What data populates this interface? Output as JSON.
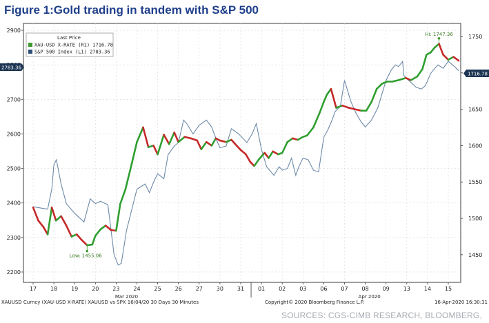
{
  "figure_title": "Figure 1:Gold trading in tandem with S&P 500",
  "source_note": "SOURCES: CGS-CIMB RESEARCH, BLOOMBERG,",
  "colors": {
    "title": "#1f3f8a",
    "gold_up": "#2f9e2f",
    "gold_down": "#c62828",
    "sp500": "#6d89a8",
    "tag_bg": "#1c3552"
  },
  "chart_data": {
    "type": "line",
    "legend": {
      "header": "Last Price",
      "entries": [
        {
          "color": "#3d9b2e",
          "text": "XAU-USD X-RATE (R1) 1716.78"
        },
        {
          "color": "#2e4f77",
          "text": "S&P 500 Index (L1) 2783.36"
        }
      ],
      "position": "top-left"
    },
    "left_axis": {
      "ticks": [
        2200,
        2300,
        2400,
        2500,
        2600,
        2700,
        2800,
        2900
      ],
      "range": [
        2170,
        2920
      ]
    },
    "right_axis": {
      "ticks": [
        1450,
        1500,
        1550,
        1600,
        1650,
        1700,
        1750
      ],
      "range": [
        1412,
        1768
      ]
    },
    "last_value_tags": {
      "left": "2783.36",
      "right": "1716.78"
    },
    "x_tick_labels": [
      "17",
      "18",
      "19",
      "20",
      "23",
      "24",
      "25",
      "26",
      "27",
      "30",
      "31",
      "01",
      "02",
      "03",
      "06",
      "07",
      "08",
      "09",
      "13",
      "14",
      "15"
    ],
    "month_labels": [
      {
        "text": "Mar 2020",
        "day_index": 4.5
      },
      {
        "text": "Apr 2020",
        "day_index": 16.2
      }
    ],
    "annotations": {
      "low_text": "Low: 1455.06",
      "high_text": "Hi: 1747.36"
    },
    "series": [
      {
        "name": "S&P 500 Index (L1)",
        "axis": "left",
        "points": [
          [
            0,
            2389
          ],
          [
            0.7,
            2382
          ],
          [
            0.9,
            2440
          ],
          [
            1.0,
            2510
          ],
          [
            1.12,
            2525
          ],
          [
            1.35,
            2455
          ],
          [
            1.6,
            2398
          ],
          [
            2.0,
            2370
          ],
          [
            2.45,
            2345
          ],
          [
            2.75,
            2412
          ],
          [
            3.0,
            2398
          ],
          [
            3.25,
            2405
          ],
          [
            3.6,
            2395
          ],
          [
            3.9,
            2250
          ],
          [
            4.1,
            2220
          ],
          [
            4.25,
            2225
          ],
          [
            4.5,
            2320
          ],
          [
            5.0,
            2440
          ],
          [
            5.4,
            2455
          ],
          [
            5.6,
            2430
          ],
          [
            5.8,
            2460
          ],
          [
            6.0,
            2485
          ],
          [
            6.3,
            2470
          ],
          [
            6.5,
            2540
          ],
          [
            6.8,
            2565
          ],
          [
            7.0,
            2575
          ],
          [
            7.25,
            2640
          ],
          [
            7.4,
            2630
          ],
          [
            7.7,
            2600
          ],
          [
            8.0,
            2625
          ],
          [
            8.35,
            2640
          ],
          [
            8.6,
            2620
          ],
          [
            8.85,
            2580
          ],
          [
            9.0,
            2560
          ],
          [
            9.3,
            2565
          ],
          [
            9.55,
            2615
          ],
          [
            9.9,
            2600
          ],
          [
            10.3,
            2575
          ],
          [
            10.55,
            2600
          ],
          [
            10.75,
            2630
          ],
          [
            10.85,
            2600
          ],
          [
            11.0,
            2555
          ],
          [
            11.25,
            2505
          ],
          [
            11.6,
            2480
          ],
          [
            11.85,
            2505
          ],
          [
            12.0,
            2495
          ],
          [
            12.25,
            2500
          ],
          [
            12.45,
            2530
          ],
          [
            12.65,
            2480
          ],
          [
            12.8,
            2505
          ],
          [
            13.0,
            2530
          ],
          [
            13.25,
            2525
          ],
          [
            13.5,
            2495
          ],
          [
            13.75,
            2490
          ],
          [
            14.0,
            2590
          ],
          [
            14.2,
            2612
          ],
          [
            14.4,
            2640
          ],
          [
            14.55,
            2665
          ],
          [
            14.8,
            2680
          ],
          [
            15.0,
            2755
          ],
          [
            15.3,
            2695
          ],
          [
            15.55,
            2660
          ],
          [
            15.8,
            2635
          ],
          [
            16.0,
            2620
          ],
          [
            16.3,
            2640
          ],
          [
            16.6,
            2675
          ],
          [
            16.85,
            2725
          ],
          [
            17.0,
            2755
          ],
          [
            17.25,
            2785
          ],
          [
            17.45,
            2800
          ],
          [
            17.6,
            2795
          ],
          [
            17.8,
            2810
          ],
          [
            17.85,
            2770
          ],
          [
            18.0,
            2760
          ],
          [
            18.45,
            2735
          ],
          [
            18.7,
            2730
          ],
          [
            18.9,
            2740
          ],
          [
            19.15,
            2775
          ],
          [
            19.35,
            2790
          ],
          [
            19.5,
            2800
          ],
          [
            19.75,
            2790
          ],
          [
            20.0,
            2810
          ],
          [
            20.3,
            2795
          ],
          [
            20.5,
            2783
          ]
        ]
      },
      {
        "name": "XAU-USD X-RATE (R1)",
        "axis": "right",
        "points": [
          [
            0,
            1515
          ],
          [
            0.25,
            1497
          ],
          [
            0.5,
            1488
          ],
          [
            0.7,
            1478
          ],
          [
            0.9,
            1515
          ],
          [
            1.1,
            1497
          ],
          [
            1.35,
            1503
          ],
          [
            1.6,
            1490
          ],
          [
            1.85,
            1475
          ],
          [
            2.1,
            1478
          ],
          [
            2.35,
            1470
          ],
          [
            2.6,
            1463
          ],
          [
            2.85,
            1464
          ],
          [
            3.0,
            1476
          ],
          [
            3.25,
            1485
          ],
          [
            3.5,
            1490
          ],
          [
            3.75,
            1484
          ],
          [
            4.0,
            1483
          ],
          [
            4.2,
            1520
          ],
          [
            4.45,
            1540
          ],
          [
            4.75,
            1575
          ],
          [
            5.0,
            1605
          ],
          [
            5.3,
            1625
          ],
          [
            5.55,
            1598
          ],
          [
            5.8,
            1600
          ],
          [
            6.0,
            1588
          ],
          [
            6.3,
            1615
          ],
          [
            6.55,
            1602
          ],
          [
            6.8,
            1618
          ],
          [
            7.0,
            1605
          ],
          [
            7.3,
            1612
          ],
          [
            7.6,
            1610
          ],
          [
            7.9,
            1607
          ],
          [
            8.1,
            1595
          ],
          [
            8.35,
            1605
          ],
          [
            8.6,
            1600
          ],
          [
            8.8,
            1610
          ],
          [
            9.0,
            1607
          ],
          [
            9.3,
            1605
          ],
          [
            9.55,
            1608
          ],
          [
            9.8,
            1600
          ],
          [
            10.0,
            1594
          ],
          [
            10.25,
            1588
          ],
          [
            10.45,
            1578
          ],
          [
            10.65,
            1572
          ],
          [
            10.9,
            1582
          ],
          [
            11.15,
            1590
          ],
          [
            11.35,
            1583
          ],
          [
            11.55,
            1592
          ],
          [
            11.8,
            1588
          ],
          [
            12.0,
            1590
          ],
          [
            12.25,
            1605
          ],
          [
            12.5,
            1610
          ],
          [
            12.75,
            1608
          ],
          [
            13.0,
            1612
          ],
          [
            13.2,
            1614
          ],
          [
            13.5,
            1625
          ],
          [
            13.8,
            1645
          ],
          [
            14.0,
            1660
          ],
          [
            14.15,
            1670
          ],
          [
            14.35,
            1678
          ],
          [
            14.6,
            1652
          ],
          [
            14.9,
            1655
          ],
          [
            15.2,
            1652
          ],
          [
            15.5,
            1650
          ],
          [
            15.8,
            1648
          ],
          [
            16.05,
            1648
          ],
          [
            16.3,
            1660
          ],
          [
            16.55,
            1678
          ],
          [
            16.8,
            1685
          ],
          [
            17.05,
            1688
          ],
          [
            17.3,
            1688
          ],
          [
            17.6,
            1690
          ],
          [
            17.95,
            1693
          ],
          [
            18.2,
            1690
          ],
          [
            18.5,
            1695
          ],
          [
            18.75,
            1705
          ],
          [
            18.95,
            1725
          ],
          [
            19.15,
            1728
          ],
          [
            19.35,
            1735
          ],
          [
            19.55,
            1740
          ],
          [
            19.75,
            1725
          ],
          [
            20.0,
            1718
          ],
          [
            20.25,
            1722
          ],
          [
            20.5,
            1716.78
          ]
        ]
      }
    ],
    "footer": {
      "left": "XAUUSD Curncy (XAU-USD X-RATE) XAUUSD vs SPX 16/04/20 30 Days 30 Minutes",
      "center": "Copyright© 2020 Bloomberg Finance L.P.",
      "right": "16-Apr-2020 16:30:31"
    }
  }
}
